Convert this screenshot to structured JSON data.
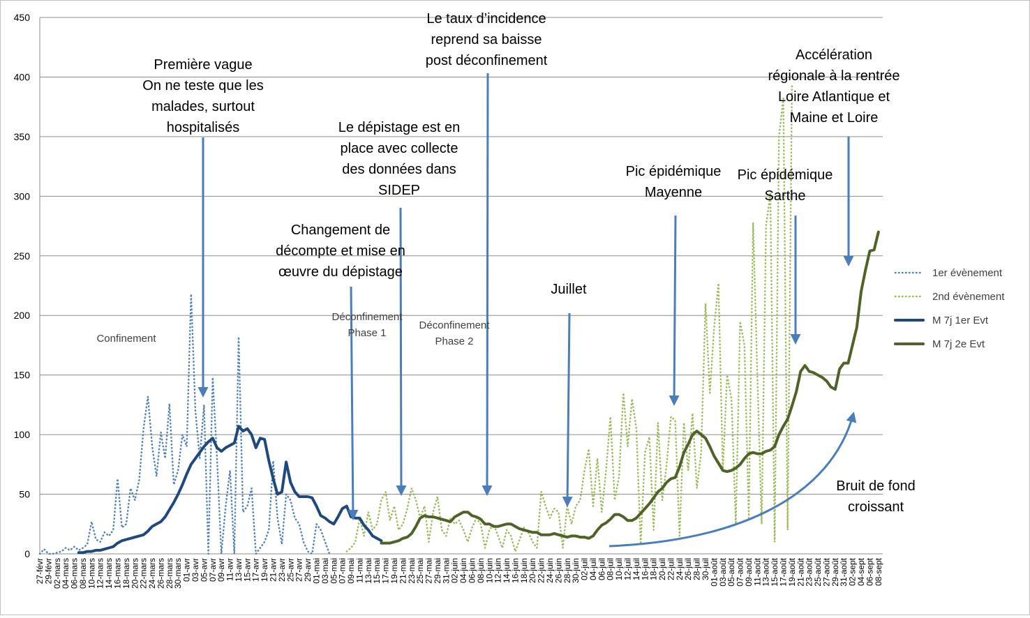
{
  "chart_data": {
    "type": "line",
    "ylim": [
      0,
      450
    ],
    "yticks": [
      0,
      50,
      100,
      150,
      200,
      250,
      300,
      350,
      400,
      450
    ],
    "grid": true,
    "legend_position": "right",
    "x_labels": [
      "27-févr",
      "29-févr",
      "02-mars",
      "04-mars",
      "06-mars",
      "08-mars",
      "10-mars",
      "12-mars",
      "14-mars",
      "16-mars",
      "18-mars",
      "20-mars",
      "22-mars",
      "24-mars",
      "26-mars",
      "28-mars",
      "30-mars",
      "01-avr",
      "03-avr",
      "05-avr",
      "07-avr",
      "09-avr",
      "11-avr",
      "13-avr",
      "15-avr",
      "17-avr",
      "19-avr",
      "21-avr",
      "23-avr",
      "25-avr",
      "27-avr",
      "29-avr",
      "01-mai",
      "03-mai",
      "05-mai",
      "07-mai",
      "09-mai",
      "11-mai",
      "13-mai",
      "15-mai",
      "17-mai",
      "19-mai",
      "21-mai",
      "23-mai",
      "25-mai",
      "27-mai",
      "29-mai",
      "31-mai",
      "02-juin",
      "04-juin",
      "06-juin",
      "08-juin",
      "10-juin",
      "12-juin",
      "14-juin",
      "16-juin",
      "18-juin",
      "20-juin",
      "22-juin",
      "24-juin",
      "26-juin",
      "28-juin",
      "30-juin",
      "02-juil",
      "04-juil",
      "06-juil",
      "08-juil",
      "10-juil",
      "12-juil",
      "14-juil",
      "16-juil",
      "18-juil",
      "20-juil",
      "22-juil",
      "24-juil",
      "26-juil",
      "28-juil",
      "30-juil",
      "01-août",
      "03-août",
      "05-août",
      "07-août",
      "09-août",
      "11-août",
      "13-août",
      "15-août",
      "17-août",
      "19-août",
      "21-août",
      "23-août",
      "25-août",
      "27-août",
      "29-août",
      "31-août",
      "02-sept",
      "04-sept",
      "06-sept",
      "08-sept"
    ],
    "series": [
      {
        "name": "1er évènement",
        "style": "dotted",
        "color": "#4f81bd",
        "start_day": 0,
        "values": [
          0,
          4,
          0,
          0,
          1,
          2,
          5,
          3,
          6,
          3,
          5,
          8,
          27,
          12,
          10,
          18,
          15,
          20,
          63,
          22,
          25,
          55,
          45,
          62,
          105,
          132,
          90,
          65,
          102,
          80,
          126,
          58,
          70,
          100,
          90,
          218,
          120,
          80,
          125,
          0,
          148,
          80,
          0,
          40,
          70,
          0,
          182,
          35,
          40,
          55,
          0,
          5,
          10,
          20,
          78,
          30,
          8,
          50,
          45,
          30,
          25,
          10,
          2,
          0,
          25,
          20,
          10,
          0
        ]
      },
      {
        "name": "2nd évènement",
        "style": "dotted",
        "color": "#9bbb59",
        "start_day": 71,
        "values": [
          2,
          5,
          10,
          30,
          15,
          35,
          20,
          25,
          45,
          52,
          28,
          40,
          20,
          25,
          38,
          55,
          45,
          30,
          40,
          10,
          35,
          48,
          20,
          15,
          30,
          25,
          28,
          20,
          10,
          22,
          30,
          25,
          5,
          20,
          25,
          15,
          5,
          20,
          15,
          2,
          12,
          22,
          18,
          10,
          5,
          52,
          40,
          30,
          38,
          35,
          5,
          40,
          25,
          40,
          45,
          70,
          88,
          40,
          80,
          35,
          70,
          115,
          45,
          65,
          135,
          90,
          130,
          105,
          8,
          85,
          98,
          20,
          110,
          45,
          75,
          115,
          112,
          15,
          110,
          70,
          118,
          55,
          85,
          210,
          135,
          190,
          227,
          70,
          150,
          130,
          25,
          195,
          175,
          30,
          278,
          150,
          25,
          275,
          302,
          10,
          350,
          382,
          20,
          393
        ]
      },
      {
        "name": "M 7j 1er Evt",
        "style": "solid",
        "color": "#1f497d",
        "start_day": 9,
        "values": [
          1,
          1,
          2,
          2,
          3,
          3,
          4,
          5,
          6,
          9,
          11,
          12,
          13,
          14,
          15,
          16,
          19,
          23,
          25,
          27,
          31,
          37,
          43,
          50,
          58,
          67,
          75,
          80,
          85,
          90,
          94,
          97,
          89,
          86,
          89,
          91,
          93,
          107,
          103,
          105,
          100,
          89,
          97,
          96,
          78,
          63,
          50,
          52,
          77,
          60,
          52,
          48,
          48,
          48,
          47,
          40,
          32,
          30,
          27,
          25,
          31,
          38,
          40,
          31,
          30,
          30,
          24,
          20,
          15,
          13,
          11
        ]
      },
      {
        "name": "M 7j 2e Evt",
        "style": "solid",
        "color": "#4f6228",
        "start_day": 79,
        "values": [
          9,
          9,
          9,
          10,
          11,
          13,
          14,
          17,
          23,
          30,
          32,
          31,
          31,
          30,
          29,
          28,
          27,
          31,
          33,
          35,
          35,
          32,
          31,
          29,
          25,
          25,
          23,
          23,
          24,
          25,
          25,
          23,
          21,
          20,
          19,
          18,
          18,
          16,
          16,
          16,
          17,
          16,
          15,
          14,
          15,
          15,
          14,
          14,
          13,
          15,
          20,
          24,
          26,
          29,
          33,
          33,
          31,
          28,
          28,
          30,
          34,
          38,
          42,
          47,
          52,
          55,
          60,
          63,
          64,
          73,
          85,
          92,
          100,
          103,
          100,
          97,
          90,
          82,
          76,
          70,
          69,
          70,
          72,
          75,
          80,
          84,
          85,
          84,
          84,
          86,
          87,
          90,
          100,
          107,
          113,
          124,
          136,
          153,
          158,
          153,
          152,
          150,
          148,
          145,
          140,
          138,
          155,
          160,
          160,
          175,
          190,
          220,
          238,
          254,
          255,
          270
        ]
      }
    ],
    "annotations": {
      "confinement": "Confinement",
      "premiere_vague": [
        "Première vague",
        "On ne teste que les",
        "malades, surtout",
        "hospitalisés"
      ],
      "deconf1": [
        "Déconfinement",
        "Phase 1"
      ],
      "deconf2": [
        "Déconfinement",
        "Phase 2"
      ],
      "changement": [
        "Changement de",
        "décompte et mise en",
        "œuvre du dépistage"
      ],
      "depistage": [
        "Le dépistage est en",
        "place avec collecte",
        "des données dans",
        "SIDEP"
      ],
      "taux": [
        "Le taux d’incidence",
        "reprend sa baisse",
        "post déconfinement"
      ],
      "juillet": "Juillet",
      "pic_mayenne": [
        "Pic épidémique",
        "Mayenne"
      ],
      "pic_sarthe": [
        "Pic épidémique",
        "Sarthe"
      ],
      "acceleration": [
        "Accélération",
        "régionale à la rentrée",
        "Loire Atlantique et",
        "Maine et Loire"
      ],
      "bruit": [
        "Bruit de fond",
        "croissant"
      ]
    }
  }
}
